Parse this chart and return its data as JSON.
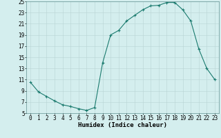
{
  "x": [
    0,
    1,
    2,
    3,
    4,
    5,
    6,
    7,
    8,
    9,
    10,
    11,
    12,
    13,
    14,
    15,
    16,
    17,
    18,
    19,
    20,
    21,
    22,
    23
  ],
  "y": [
    10.5,
    8.8,
    8.0,
    7.2,
    6.5,
    6.2,
    5.8,
    5.5,
    6.0,
    14.0,
    19.0,
    19.8,
    21.5,
    22.5,
    23.5,
    24.2,
    24.3,
    24.8,
    24.8,
    23.5,
    21.5,
    16.5,
    13.0,
    11.0
  ],
  "line_color": "#1a7a6e",
  "marker": "+",
  "marker_size": 3.5,
  "bg_color": "#d4eeee",
  "grid_color": "#b8d4d4",
  "xlabel": "Humidex (Indice chaleur)",
  "xlim": [
    -0.5,
    23.5
  ],
  "ylim": [
    5,
    25
  ],
  "xtick_labels": [
    "0",
    "1",
    "2",
    "3",
    "4",
    "5",
    "6",
    "7",
    "8",
    "9",
    "10",
    "11",
    "12",
    "13",
    "14",
    "15",
    "16",
    "17",
    "18",
    "19",
    "20",
    "21",
    "22",
    "23"
  ],
  "ytick_values": [
    5,
    7,
    9,
    11,
    13,
    15,
    17,
    19,
    21,
    23,
    25
  ],
  "xlabel_fontsize": 6.5,
  "tick_fontsize": 5.5,
  "linewidth": 0.8,
  "marker_linewidth": 0.8
}
